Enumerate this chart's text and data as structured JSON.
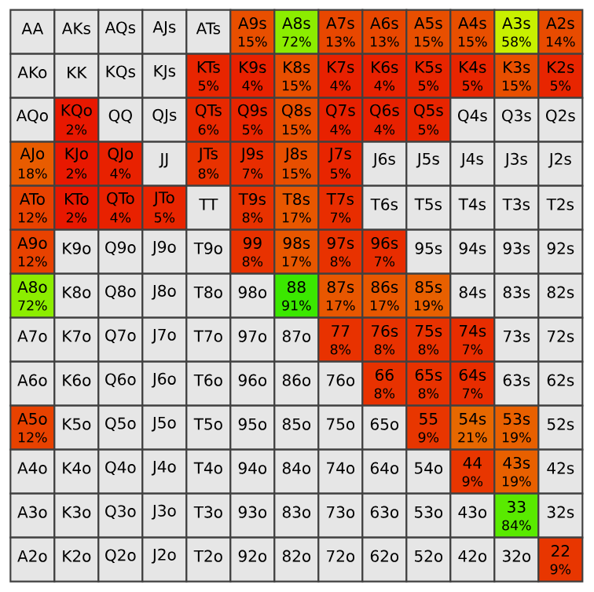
{
  "chart_data": {
    "type": "heatmap",
    "categories": [
      null,
      null,
      null,
      null,
      null,
      null,
      null,
      null,
      null,
      null,
      null,
      null,
      null
    ],
    "y_categories": [
      null,
      null,
      null,
      null,
      null,
      null,
      null,
      null,
      null,
      null,
      null,
      null,
      null
    ],
    "cells": [
      [
        null,
        null,
        null,
        null,
        null,
        15,
        72,
        13,
        13,
        15,
        15,
        58,
        14
      ],
      [
        null,
        null,
        null,
        null,
        5,
        4,
        15,
        4,
        4,
        5,
        5,
        15,
        5
      ],
      [
        null,
        2,
        null,
        null,
        6,
        5,
        15,
        4,
        4,
        5,
        null,
        null,
        null
      ],
      [
        18,
        2,
        4,
        null,
        8,
        7,
        15,
        5,
        null,
        null,
        null,
        null,
        null
      ],
      [
        12,
        2,
        4,
        5,
        null,
        8,
        17,
        7,
        null,
        null,
        null,
        null,
        null
      ],
      [
        12,
        null,
        null,
        null,
        null,
        8,
        17,
        8,
        7,
        null,
        null,
        null,
        null
      ],
      [
        72,
        null,
        null,
        null,
        null,
        null,
        91,
        17,
        17,
        19,
        null,
        null,
        null
      ],
      [
        null,
        null,
        null,
        null,
        null,
        null,
        null,
        8,
        8,
        8,
        7,
        null,
        null
      ],
      [
        null,
        null,
        null,
        null,
        null,
        null,
        null,
        null,
        8,
        8,
        7,
        null,
        null
      ],
      [
        12,
        null,
        null,
        null,
        null,
        null,
        null,
        null,
        null,
        9,
        21,
        19,
        null
      ],
      [
        null,
        null,
        null,
        null,
        null,
        null,
        null,
        null,
        null,
        null,
        9,
        19,
        null
      ],
      [
        null,
        null,
        null,
        null,
        null,
        null,
        null,
        null,
        null,
        null,
        null,
        84,
        null
      ],
      [
        null,
        null,
        null,
        null,
        null,
        null,
        null,
        null,
        null,
        null,
        null,
        null,
        9
      ]
    ],
    "cell_labels": [
      [
        null,
        null,
        null,
        null,
        null,
        "15%",
        "72%",
        "13%",
        "13%",
        "15%",
        "15%",
        "58%",
        "14%"
      ],
      [
        null,
        null,
        null,
        null,
        "5%",
        "4%",
        "15%",
        "4%",
        "4%",
        "5%",
        "5%",
        "15%",
        "5%"
      ],
      [
        null,
        "2%",
        null,
        null,
        "6%",
        "5%",
        "15%",
        "4%",
        "4%",
        "5%",
        null,
        null,
        null
      ],
      [
        "18%",
        "2%",
        "4%",
        null,
        "8%",
        "7%",
        "15%",
        "5%",
        null,
        null,
        null,
        null,
        null
      ],
      [
        "12%",
        "2%",
        "4%",
        "5%",
        null,
        "8%",
        "17%",
        "7%",
        null,
        null,
        null,
        null,
        null
      ],
      [
        "12%",
        null,
        null,
        null,
        null,
        "8%",
        "17%",
        "8%",
        "7%",
        null,
        null,
        null,
        null
      ],
      [
        "72%",
        null,
        null,
        null,
        null,
        null,
        "91%",
        "17%",
        "17%",
        "19%",
        null,
        null,
        null
      ],
      [
        null,
        null,
        null,
        null,
        null,
        null,
        null,
        "8%",
        "8%",
        "8%",
        "7%",
        null,
        null
      ],
      [
        null,
        null,
        null,
        null,
        null,
        null,
        null,
        null,
        "8%",
        "8%",
        "7%",
        null,
        null
      ],
      [
        "12%",
        null,
        null,
        null,
        null,
        null,
        null,
        null,
        null,
        "9%",
        "21%",
        "19%",
        null
      ],
      [
        null,
        null,
        null,
        null,
        null,
        null,
        null,
        null,
        null,
        null,
        "9%",
        "19%",
        null
      ],
      [
        null,
        null,
        null,
        null,
        null,
        null,
        null,
        null,
        null,
        null,
        null,
        "84%",
        null
      ],
      [
        null,
        null,
        null,
        null,
        null,
        null,
        null,
        null,
        null,
        null,
        null,
        null,
        "9%"
      ]
    ],
    "annotations": [
      "AA",
      "AKs",
      "AQs",
      "AJs",
      "ATs",
      "A9s",
      "A8s",
      "A7s",
      "A6s",
      "A5s",
      "A4s",
      "A3s",
      "A2s",
      "AKo",
      "KK",
      "KQs",
      "KJs",
      "KTs",
      "K9s",
      "K8s",
      "K7s",
      "K6s",
      "K5s",
      "K4s",
      "K3s",
      "K2s",
      "AQo",
      "KQo",
      "QQ",
      "QJs",
      "QTs",
      "Q9s",
      "Q8s",
      "Q7s",
      "Q6s",
      "Q5s",
      "Q4s",
      "Q3s",
      "Q2s",
      "AJo",
      "KJo",
      "QJo",
      "JJ",
      "JTs",
      "J9s",
      "J8s",
      "J7s",
      "J6s",
      "J5s",
      "J4s",
      "J3s",
      "J2s",
      "ATo",
      "KTo",
      "QTo",
      "JTo",
      "TT",
      "T9s",
      "T8s",
      "T7s",
      "T6s",
      "T5s",
      "T4s",
      "T3s",
      "T2s",
      "A9o",
      "K9o",
      "Q9o",
      "J9o",
      "T9o",
      "99",
      "98s",
      "97s",
      "96s",
      "95s",
      "94s",
      "93s",
      "92s",
      "A8o",
      "K8o",
      "Q8o",
      "J8o",
      "T8o",
      "98o",
      "88",
      "87s",
      "86s",
      "85s",
      "84s",
      "83s",
      "82s",
      "A7o",
      "K7o",
      "Q7o",
      "J7o",
      "T7o",
      "97o",
      "87o",
      "77",
      "76s",
      "75s",
      "74s",
      "73s",
      "72s",
      "A6o",
      "K6o",
      "Q6o",
      "J6o",
      "T6o",
      "96o",
      "86o",
      "76o",
      "66",
      "65s",
      "64s",
      "63s",
      "62s",
      "A5o",
      "K5o",
      "Q5o",
      "J5o",
      "T5o",
      "95o",
      "85o",
      "75o",
      "65o",
      "55",
      "54s",
      "53s",
      "52s",
      "A4o",
      "K4o",
      "Q4o",
      "J4o",
      "T4o",
      "94o",
      "84o",
      "74o",
      "64o",
      "54o",
      "44",
      "43s",
      "42s",
      "A3o",
      "K3o",
      "Q3o",
      "J3o",
      "T3o",
      "93o",
      "83o",
      "73o",
      "63o",
      "53o",
      "43o",
      "33",
      "32s",
      "A2o",
      "K2o",
      "Q2o",
      "J2o",
      "T2o",
      "92o",
      "82o",
      "72o",
      "62o",
      "52o",
      "42o",
      "32o",
      "22"
    ]
  }
}
